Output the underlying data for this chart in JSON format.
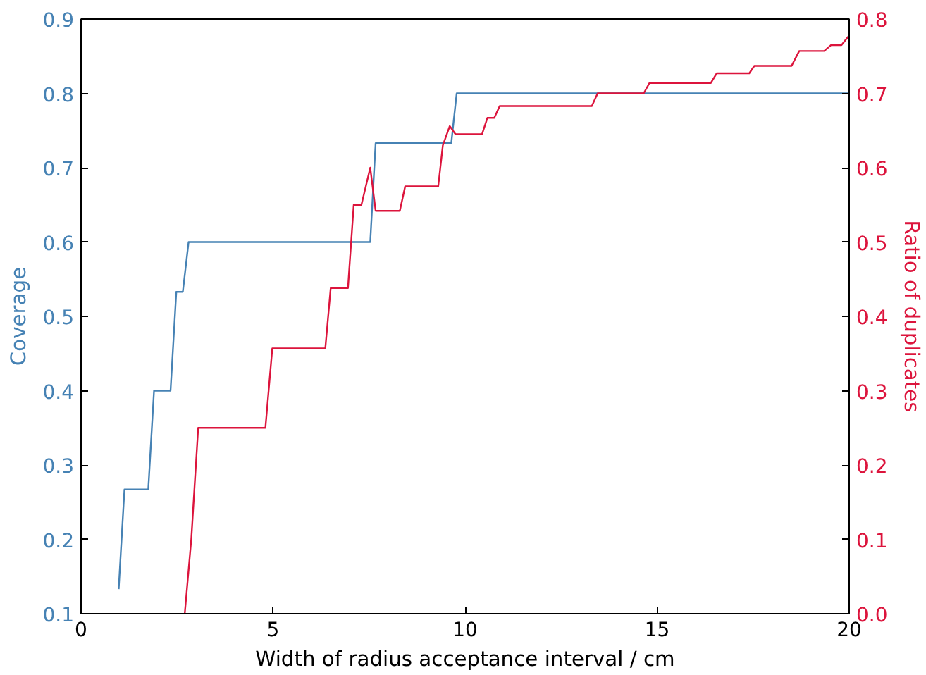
{
  "chart_data": {
    "type": "line",
    "xlabel": "Width of radius acceptance interval / cm",
    "ylabel": "Coverage",
    "y2label": "Ratio of duplicates",
    "xlim": [
      0,
      20
    ],
    "xticks": [
      0,
      5,
      10,
      15,
      20
    ],
    "ylim": [
      0.1,
      0.9
    ],
    "yticks": [
      0.1,
      0.2,
      0.3,
      0.4,
      0.5,
      0.6,
      0.7,
      0.8,
      0.9
    ],
    "y2lim": [
      0,
      0.8
    ],
    "y2ticks": [
      {
        "value": 0,
        "label": "0.0"
      },
      0.1,
      0.2,
      0.3,
      0.4,
      0.5,
      0.6,
      0.7,
      0.8
    ],
    "series": [
      {
        "color": "#4682b4",
        "x": [
          0.98,
          1.13,
          1.75,
          1.9,
          2.33,
          2.48,
          2.65,
          2.8,
          2.9,
          7.53,
          7.67,
          9.64,
          9.78,
          20
        ],
        "values": [
          0.133,
          0.267,
          0.267,
          0.4,
          0.4,
          0.533,
          0.533,
          0.6,
          0.6,
          0.6,
          0.733,
          0.733,
          0.8,
          0.8
        ]
      },
      {
        "color": "#dc143c",
        "axis": "y2",
        "x": [
          2.7,
          2.87,
          3.05,
          4.8,
          4.98,
          6.36,
          6.5,
          6.95,
          7.1,
          7.3,
          7.53,
          7.67,
          8.3,
          8.44,
          9.3,
          9.42,
          9.6,
          9.75,
          10.44,
          10.58,
          10.76,
          10.9,
          13.3,
          13.45,
          14.65,
          14.8,
          16.4,
          16.55,
          17.4,
          17.53,
          18.5,
          18.7,
          19.35,
          19.53,
          19.8,
          20
        ],
        "values": [
          0.0,
          0.1,
          0.25,
          0.25,
          0.357,
          0.357,
          0.438,
          0.438,
          0.55,
          0.55,
          0.6,
          0.542,
          0.542,
          0.575,
          0.575,
          0.63,
          0.656,
          0.645,
          0.645,
          0.667,
          0.667,
          0.683,
          0.683,
          0.7,
          0.7,
          0.714,
          0.714,
          0.727,
          0.727,
          0.737,
          0.737,
          0.757,
          0.757,
          0.765,
          0.765,
          0.778
        ]
      }
    ]
  }
}
